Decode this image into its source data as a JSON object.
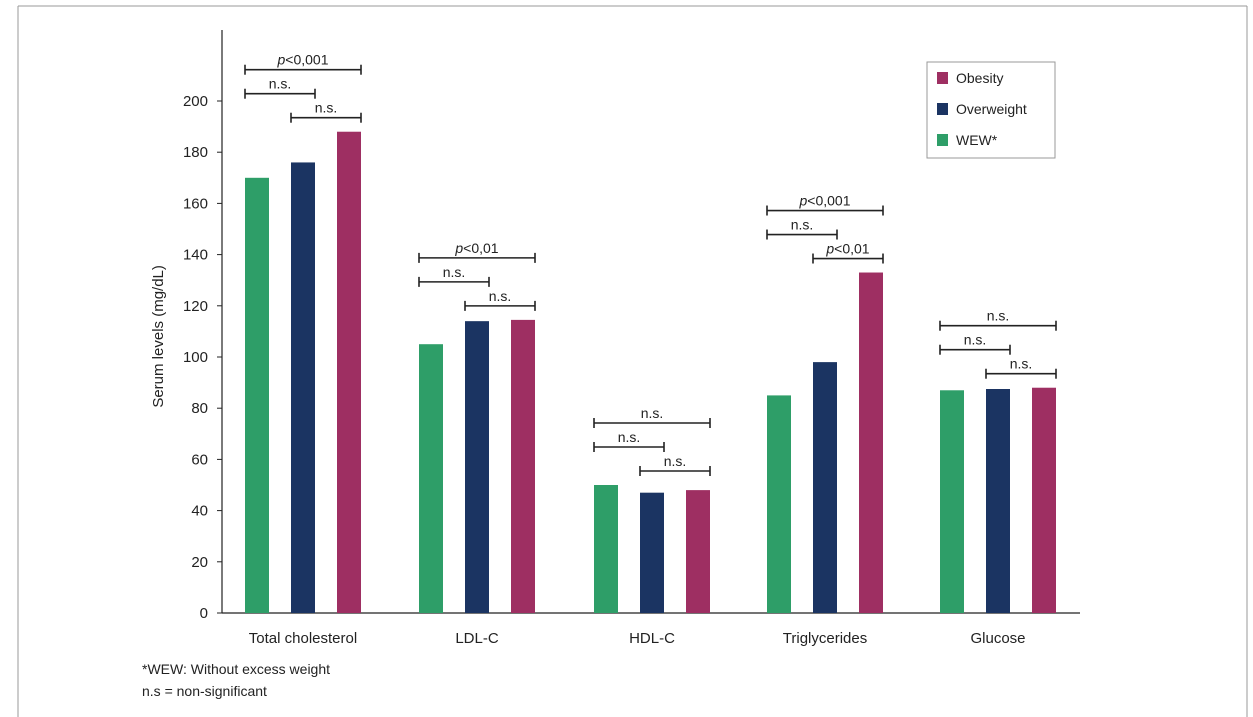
{
  "chart_data": {
    "type": "bar",
    "ylabel": "Serum levels (mg/dL)",
    "xlabel": "",
    "ylim": [
      0,
      220
    ],
    "yticks": [
      0,
      20,
      40,
      60,
      80,
      100,
      120,
      140,
      160,
      180,
      200
    ],
    "grid": false,
    "legend_position": "top-right",
    "categories": [
      "Total cholesterol",
      "LDL-C",
      "HDL-C",
      "Triglycerides",
      "Glucose"
    ],
    "series": [
      {
        "name": "WEW*",
        "color": "#2e9e68",
        "values": [
          170,
          105,
          50,
          85,
          87
        ]
      },
      {
        "name": "Overweight",
        "color": "#1b3462",
        "values": [
          176,
          114,
          47,
          98,
          87.5
        ]
      },
      {
        "name": "Obesity",
        "color": "#9e2f62",
        "values": [
          188,
          114.5,
          48,
          133,
          88
        ]
      }
    ],
    "legend_order": [
      "Obesity",
      "Overweight",
      "WEW*"
    ],
    "significance": [
      {
        "category": "Total cholesterol",
        "from": "WEW*",
        "to": "Overweight",
        "label": "n.s."
      },
      {
        "category": "Total cholesterol",
        "from": "WEW*",
        "to": "Obesity",
        "label": "p<0,001"
      },
      {
        "category": "Total cholesterol",
        "from": "Overweight",
        "to": "Obesity",
        "label": "n.s."
      },
      {
        "category": "LDL-C",
        "from": "WEW*",
        "to": "Overweight",
        "label": "n.s."
      },
      {
        "category": "LDL-C",
        "from": "WEW*",
        "to": "Obesity",
        "label": "p<0,01"
      },
      {
        "category": "LDL-C",
        "from": "Overweight",
        "to": "Obesity",
        "label": "n.s."
      },
      {
        "category": "HDL-C",
        "from": "WEW*",
        "to": "Overweight",
        "label": "n.s."
      },
      {
        "category": "HDL-C",
        "from": "WEW*",
        "to": "Obesity",
        "label": "n.s."
      },
      {
        "category": "HDL-C",
        "from": "Overweight",
        "to": "Obesity",
        "label": "n.s."
      },
      {
        "category": "Triglycerides",
        "from": "WEW*",
        "to": "Overweight",
        "label": "n.s."
      },
      {
        "category": "Triglycerides",
        "from": "WEW*",
        "to": "Obesity",
        "label": "p<0,001"
      },
      {
        "category": "Triglycerides",
        "from": "Overweight",
        "to": "Obesity",
        "label": "p<0,01"
      },
      {
        "category": "Glucose",
        "from": "WEW*",
        "to": "Overweight",
        "label": "n.s."
      },
      {
        "category": "Glucose",
        "from": "WEW*",
        "to": "Obesity",
        "label": "n.s."
      },
      {
        "category": "Glucose",
        "from": "Overweight",
        "to": "Obesity",
        "label": "n.s."
      }
    ]
  },
  "footnotes": {
    "wew": "*WEW: Without excess weight",
    "ns": "n.s = non-significant"
  }
}
